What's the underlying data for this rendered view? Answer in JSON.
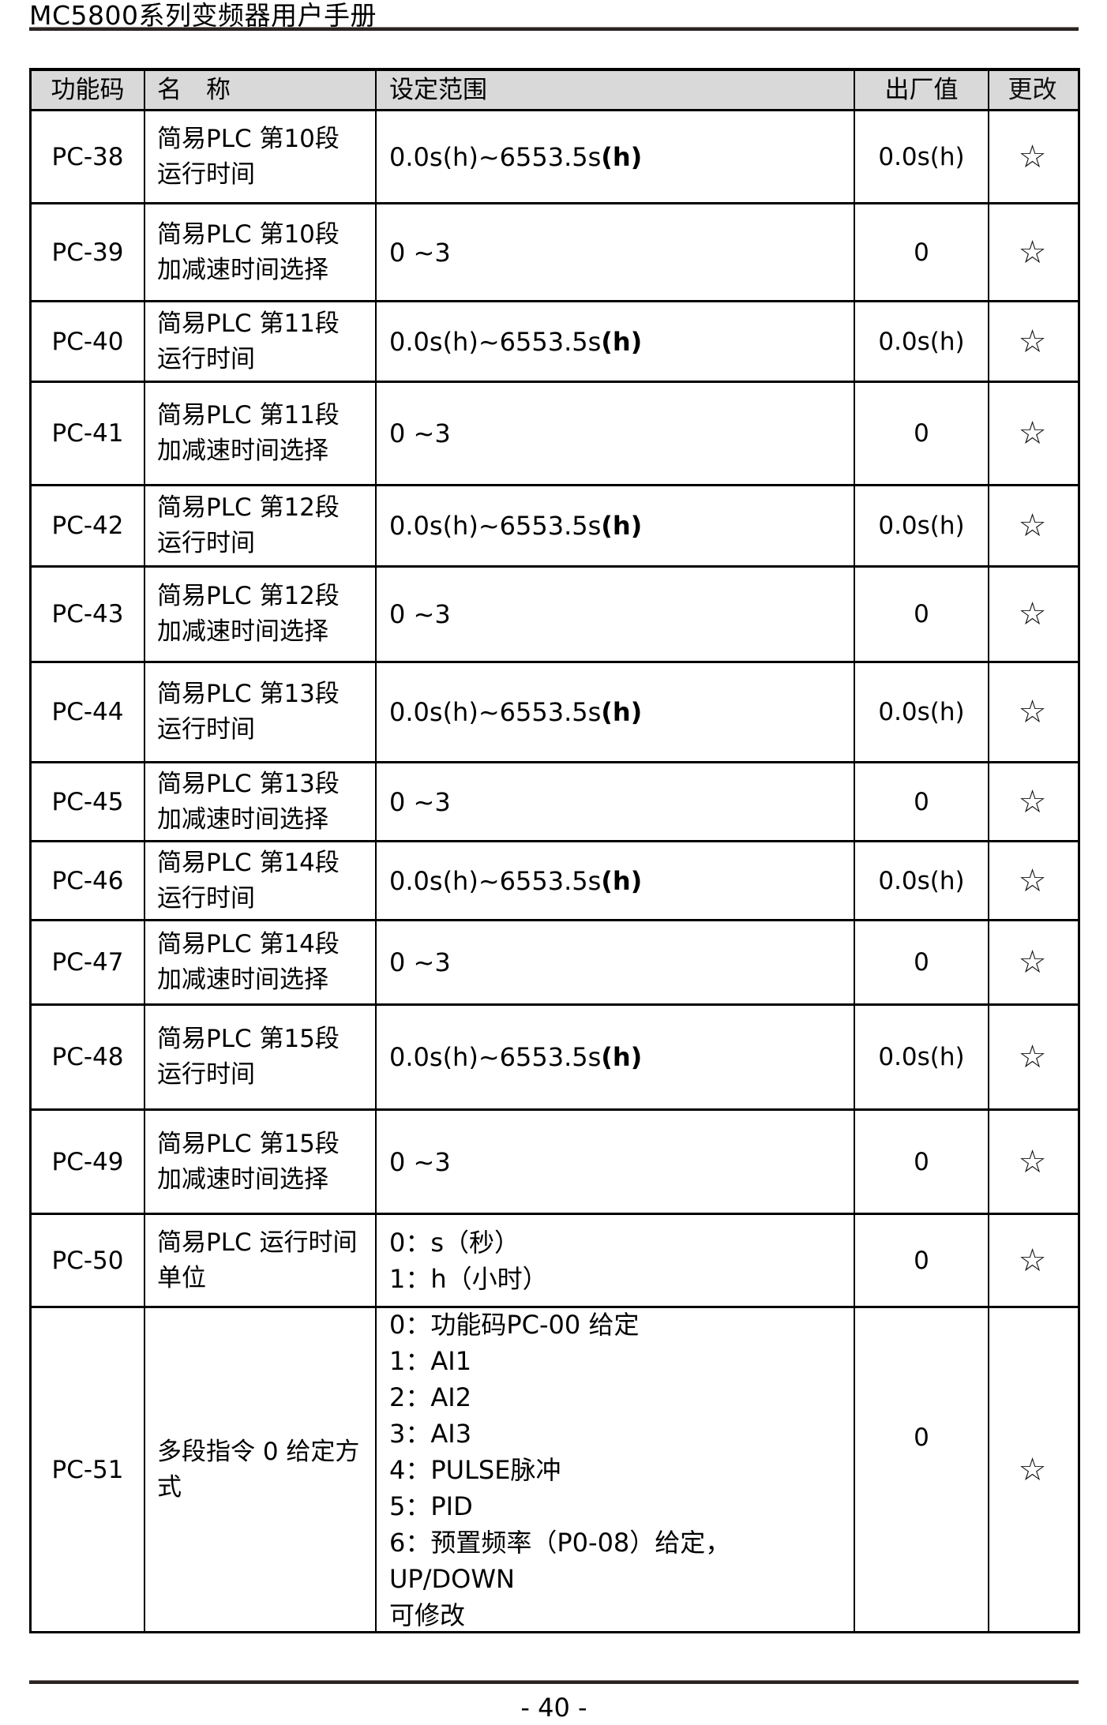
{
  "page": {
    "title": "MC5800系列变频器用户手册",
    "page_number": "- 40 -"
  },
  "colors": {
    "header_background": "#d9d9d9",
    "border": "#000000",
    "rule": "#2b2321",
    "text": "#000000"
  },
  "icons": {
    "change_star": "☆"
  },
  "table": {
    "headers": [
      "功能码",
      "名　称",
      "设定范围",
      "出厂值",
      "更改"
    ],
    "rows": [
      {
        "code": "PC-38",
        "name_lines": [
          "简易PLC 第10段",
          "运行时间"
        ],
        "range_lines": [
          [
            {
              "t": "0.0s(h)~6553.5s"
            },
            {
              "t": "(h)",
              "b": true
            }
          ]
        ],
        "default_value": "0.0s(h)",
        "change": "☆"
      },
      {
        "code": "PC-39",
        "name_lines": [
          "简易PLC 第10段",
          "加减速时间选择"
        ],
        "range_lines": [
          [
            {
              "t": "0 ~3"
            }
          ]
        ],
        "default_value": "0",
        "change": "☆"
      },
      {
        "code": "PC-40",
        "name_lines": [
          "简易PLC 第11段",
          "运行时间"
        ],
        "range_lines": [
          [
            {
              "t": "0.0s(h)~6553.5s"
            },
            {
              "t": "(h)",
              "b": true
            }
          ]
        ],
        "default_value": "0.0s(h)",
        "change": "☆"
      },
      {
        "code": "PC-41",
        "name_lines": [
          "简易PLC 第11段",
          "加减速时间选择"
        ],
        "range_lines": [
          [
            {
              "t": "0 ~3"
            }
          ]
        ],
        "default_value": "0",
        "change": "☆"
      },
      {
        "code": "PC-42",
        "name_lines": [
          "简易PLC 第12段",
          "运行时间"
        ],
        "range_lines": [
          [
            {
              "t": "0.0s(h)~6553.5s"
            },
            {
              "t": "(h)",
              "b": true
            }
          ]
        ],
        "default_value": "0.0s(h)",
        "change": "☆"
      },
      {
        "code": "PC-43",
        "name_lines": [
          "简易PLC 第12段",
          "加减速时间选择"
        ],
        "range_lines": [
          [
            {
              "t": "0 ~3"
            }
          ]
        ],
        "default_value": "0",
        "change": "☆"
      },
      {
        "code": "PC-44",
        "name_lines": [
          "简易PLC 第13段",
          "运行时间"
        ],
        "range_lines": [
          [
            {
              "t": "0.0s(h)~6553.5s"
            },
            {
              "t": "(h)",
              "b": true
            }
          ]
        ],
        "default_value": "0.0s(h)",
        "change": "☆"
      },
      {
        "code": "PC-45",
        "name_lines": [
          "简易PLC 第13段",
          "加减速时间选择"
        ],
        "range_lines": [
          [
            {
              "t": "0 ~3"
            }
          ]
        ],
        "default_value": "0",
        "change": "☆"
      },
      {
        "code": "PC-46",
        "name_lines": [
          "简易PLC 第14段",
          "运行时间"
        ],
        "range_lines": [
          [
            {
              "t": "0.0s(h)~6553.5s"
            },
            {
              "t": "(h)",
              "b": true
            }
          ]
        ],
        "default_value": "0.0s(h)",
        "change": "☆"
      },
      {
        "code": "PC-47",
        "name_lines": [
          "简易PLC 第14段",
          "加减速时间选择"
        ],
        "range_lines": [
          [
            {
              "t": "0 ~3"
            }
          ]
        ],
        "default_value": "0",
        "change": "☆"
      },
      {
        "code": "PC-48",
        "name_lines": [
          "简易PLC 第15段",
          "运行时间"
        ],
        "range_lines": [
          [
            {
              "t": "0.0s(h)~6553.5s"
            },
            {
              "t": "(h)",
              "b": true
            }
          ]
        ],
        "default_value": "0.0s(h)",
        "change": "☆"
      },
      {
        "code": "PC-49",
        "name_lines": [
          "简易PLC 第15段",
          "加减速时间选择"
        ],
        "range_lines": [
          [
            {
              "t": "0 ~3"
            }
          ]
        ],
        "default_value": "0",
        "change": "☆"
      },
      {
        "code": "PC-50",
        "name_lines": [
          "简易PLC 运行时间",
          "单位"
        ],
        "range_lines": [
          [
            {
              "t": "0：s（秒）"
            }
          ],
          [
            {
              "t": "1：h（小时）"
            }
          ]
        ],
        "default_value": "0",
        "change": "☆"
      },
      {
        "code": "PC-51",
        "name_lines": [
          "多段指令 0 给定方",
          "式"
        ],
        "range_lines": [
          [
            {
              "t": "0：功能码PC-00 给定"
            }
          ],
          [
            {
              "t": "1：AI1"
            }
          ],
          [
            {
              "t": "2：AI2"
            }
          ],
          [
            {
              "t": "3：AI3"
            }
          ],
          [
            {
              "t": "4：PULSE脉冲"
            }
          ],
          [
            {
              "t": "5：PID"
            }
          ],
          [
            {
              "t": "6：预置频率（P0-08）给定，UP/DOWN"
            }
          ],
          [
            {
              "t": "可修改"
            }
          ]
        ],
        "default_value": "0",
        "change": "☆"
      }
    ]
  }
}
